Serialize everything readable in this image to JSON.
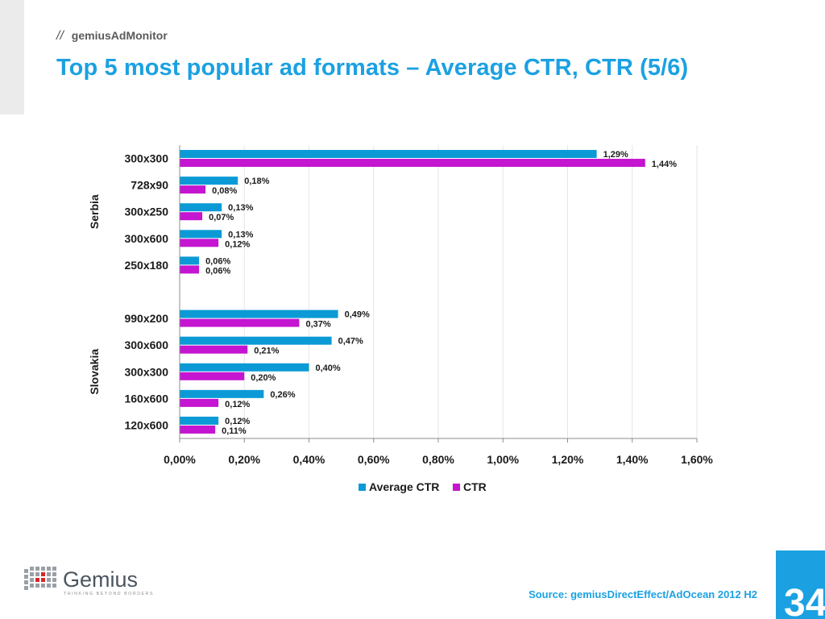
{
  "header": {
    "brand_slashes": "//",
    "brand": "gemiusAdMonitor",
    "title": "Top 5 most popular ad formats – Average CTR, CTR (5/6)"
  },
  "footer": {
    "source": "Source: gemiusDirectEffect/AdOcean 2012 H2",
    "page_number": "34",
    "logo_text": "Gemius",
    "logo_tagline": "THINKING BEYOND BORDERS"
  },
  "colors": {
    "accent": "#1ba1e2",
    "average_ctr": "#0b9ad6",
    "ctr": "#c415d0"
  },
  "chart_data": {
    "type": "bar",
    "orientation": "horizontal",
    "groups": [
      {
        "name": "Serbia",
        "categories": [
          "300x300",
          "728x90",
          "300x250",
          "300x600",
          "250x180"
        ],
        "series": [
          {
            "name": "Average CTR",
            "values": [
              1.29,
              0.18,
              0.13,
              0.13,
              0.06
            ],
            "labels": [
              "1,29%",
              "0,18%",
              "0,13%",
              "0,13%",
              "0,06%"
            ]
          },
          {
            "name": "CTR",
            "values": [
              1.44,
              0.08,
              0.07,
              0.12,
              0.06
            ],
            "labels": [
              "1,44%",
              "0,08%",
              "0,07%",
              "0,12%",
              "0,06%"
            ]
          }
        ]
      },
      {
        "name": "Slovakia",
        "categories": [
          "990x200",
          "300x600",
          "300x300",
          "160x600",
          "120x600"
        ],
        "series": [
          {
            "name": "Average CTR",
            "values": [
              0.49,
              0.47,
              0.4,
              0.26,
              0.12
            ],
            "labels": [
              "0,49%",
              "0,47%",
              "0,40%",
              "0,26%",
              "0,12%"
            ]
          },
          {
            "name": "CTR",
            "values": [
              0.37,
              0.21,
              0.2,
              0.12,
              0.11
            ],
            "labels": [
              "0,37%",
              "0,21%",
              "0,20%",
              "0,12%",
              "0,11%"
            ]
          }
        ]
      }
    ],
    "xlim": [
      0,
      1.6
    ],
    "x_ticks": [
      0,
      0.2,
      0.4,
      0.6,
      0.8,
      1.0,
      1.2,
      1.4,
      1.6
    ],
    "x_tick_labels": [
      "0,00%",
      "0,20%",
      "0,40%",
      "0,60%",
      "0,80%",
      "1,00%",
      "1,20%",
      "1,40%",
      "1,60%"
    ],
    "legend": [
      "Average CTR",
      "CTR"
    ],
    "legend_position": "bottom",
    "grid": true
  }
}
